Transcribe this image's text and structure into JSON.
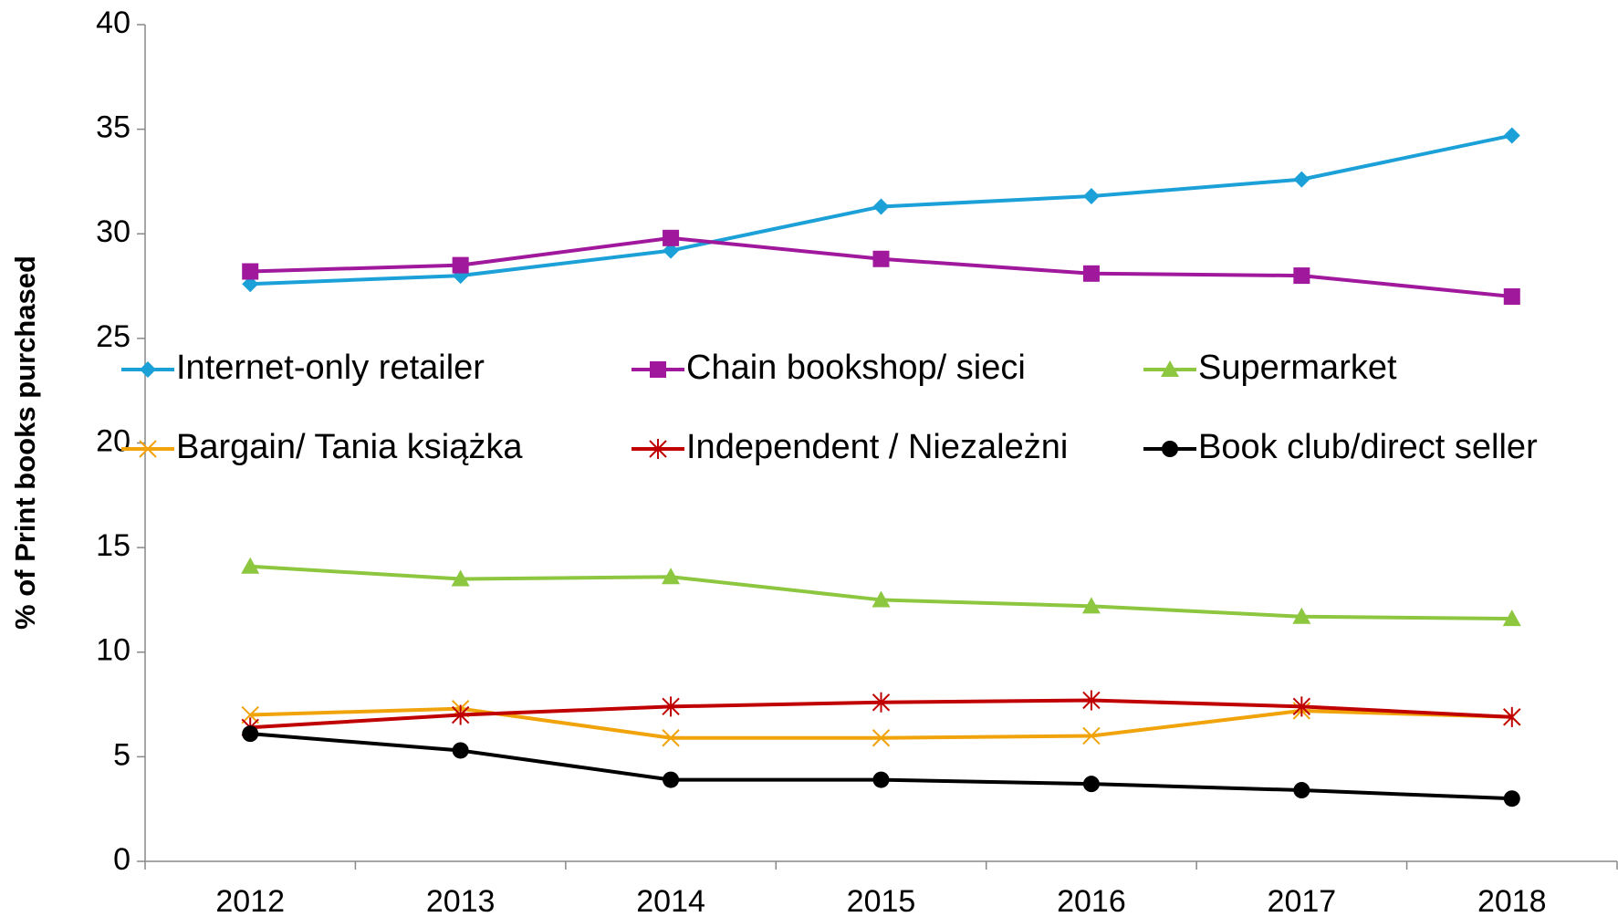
{
  "chart_data": {
    "type": "line",
    "y_label": "% of Print books purchased",
    "categories": [
      "2012",
      "2013",
      "2014",
      "2015",
      "2016",
      "2017",
      "2018"
    ],
    "series": [
      {
        "name": "Internet-only retailer",
        "color": "#1ba1d8",
        "marker": "diamond",
        "values": [
          27.6,
          28.0,
          29.2,
          31.3,
          31.8,
          32.6,
          34.7
        ]
      },
      {
        "name": "Chain bookshop/ sieci",
        "color": "#a0189c",
        "marker": "square",
        "values": [
          28.2,
          28.5,
          29.8,
          28.8,
          28.1,
          28.0,
          27.0
        ]
      },
      {
        "name": "Supermarket",
        "color": "#8dc63f",
        "marker": "triangle",
        "values": [
          14.1,
          13.5,
          13.6,
          12.5,
          12.2,
          11.7,
          11.6
        ]
      },
      {
        "name": "Bargain/ Tania książka",
        "color": "#f0a30a",
        "marker": "x",
        "values": [
          7.0,
          7.3,
          5.9,
          5.9,
          6.0,
          7.2,
          6.9
        ]
      },
      {
        "name": "Independent / Niezależni",
        "color": "#c00000",
        "marker": "asterisk",
        "values": [
          6.4,
          7.0,
          7.4,
          7.6,
          7.7,
          7.4,
          6.9
        ]
      },
      {
        "name": "Book club/direct seller",
        "color": "#000000",
        "marker": "circle",
        "values": [
          6.1,
          5.3,
          3.9,
          3.9,
          3.7,
          3.4,
          3.0
        ]
      }
    ],
    "ylim": [
      0,
      40
    ],
    "yticks": [
      0,
      5,
      10,
      15,
      20,
      25,
      30,
      35,
      40
    ]
  }
}
